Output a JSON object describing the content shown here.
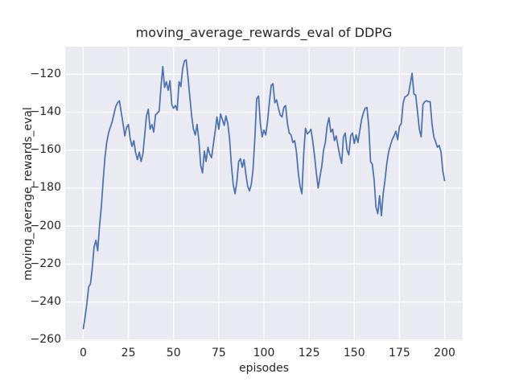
{
  "colors": {
    "line": "#4c72b0",
    "axes_background": "#eaeaf2",
    "grid": "#ffffff",
    "text": "#262626",
    "figure_background": "#ffffff"
  },
  "chart_data": {
    "type": "line",
    "title": "moving_average_rewards_eval of DDPG",
    "xlabel": "episodes",
    "ylabel": "moving_average_rewards_eval",
    "legend": "none",
    "grid": true,
    "x_start": 0,
    "x_step": 1,
    "xlim": [
      -10,
      210
    ],
    "ylim": [
      -260.5,
      -105.5
    ],
    "xticks": [
      0,
      25,
      50,
      75,
      100,
      125,
      150,
      175,
      200
    ],
    "yticks": [
      -260,
      -240,
      -220,
      -200,
      -180,
      -160,
      -140,
      -120
    ],
    "values": [
      -254,
      -248,
      -241,
      -232,
      -230.5,
      -222,
      -211,
      -207.5,
      -213,
      -200,
      -190,
      -176,
      -164,
      -156,
      -151,
      -148,
      -145,
      -141,
      -137,
      -135,
      -134,
      -140,
      -146,
      -152.5,
      -148,
      -146.5,
      -154,
      -158,
      -155,
      -161.5,
      -165,
      -161,
      -166,
      -162,
      -152,
      -142,
      -138.5,
      -149,
      -146.5,
      -150.5,
      -141.5,
      -140.5,
      -139.5,
      -127,
      -116,
      -127,
      -124,
      -128.5,
      -123.5,
      -136,
      -138,
      -136.5,
      -139,
      -124,
      -126.5,
      -117,
      -113,
      -112.5,
      -122,
      -132,
      -142,
      -149,
      -152,
      -146.5,
      -155,
      -168,
      -172,
      -160.5,
      -166,
      -158.5,
      -162,
      -164,
      -157,
      -150,
      -142.5,
      -149,
      -141,
      -144,
      -147,
      -142,
      -146,
      -154,
      -168,
      -178,
      -183,
      -177,
      -166,
      -164.5,
      -169,
      -165,
      -172.5,
      -179,
      -181.5,
      -178,
      -170,
      -153,
      -133,
      -131.5,
      -146,
      -153,
      -149.5,
      -152,
      -145,
      -135,
      -126,
      -125,
      -135,
      -133.5,
      -138,
      -141.5,
      -142.5,
      -137.5,
      -136.5,
      -146,
      -151,
      -152,
      -156,
      -155,
      -161,
      -172,
      -179,
      -183,
      -162,
      -148.5,
      -151.5,
      -150.5,
      -149,
      -155,
      -163,
      -172,
      -180,
      -174,
      -168.5,
      -160,
      -156,
      -147,
      -143,
      -150.5,
      -149,
      -155,
      -152.5,
      -158,
      -163,
      -167,
      -153,
      -151,
      -160,
      -162.5,
      -152.5,
      -151,
      -156.5,
      -152,
      -156,
      -150,
      -144,
      -140.5,
      -138,
      -137.5,
      -147,
      -166,
      -167.5,
      -176,
      -190,
      -193.5,
      -184,
      -194.5,
      -183,
      -176,
      -167,
      -161,
      -157.5,
      -154.5,
      -152.5,
      -150,
      -154.5,
      -147.5,
      -146,
      -135.5,
      -132,
      -131.5,
      -130.5,
      -125,
      -119.5,
      -130.5,
      -131,
      -140,
      -149,
      -153,
      -136,
      -134.5,
      -134,
      -134.5,
      -134.5,
      -146,
      -153,
      -155.5,
      -158.5,
      -157.5,
      -161,
      -171,
      -176
    ]
  }
}
